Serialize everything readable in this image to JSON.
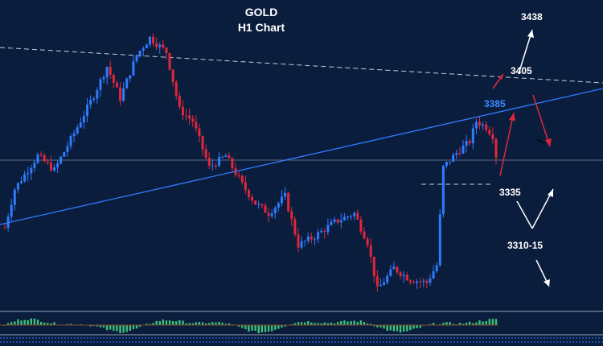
{
  "chart_data": {
    "type": "candlestick",
    "title": "GOLD",
    "subtitle": "H1 Chart",
    "colors": {
      "background": "#0b1d3d",
      "bull": "#2f7bff",
      "bear": "#e0283a",
      "trendline": "#2f7bff",
      "dashed": "#c8ced8",
      "arrow_white": "#ffffff",
      "arrow_red": "#e0283a",
      "osc_pos": "#3cc37a"
    },
    "price_range": [
      3255,
      3455
    ],
    "candle_count": 150,
    "close_path": [
      {
        "i": 0,
        "p": 3308
      },
      {
        "i": 3,
        "p": 3335
      },
      {
        "i": 10,
        "p": 3358
      },
      {
        "i": 15,
        "p": 3348
      },
      {
        "i": 22,
        "p": 3378
      },
      {
        "i": 27,
        "p": 3400
      },
      {
        "i": 31,
        "p": 3420
      },
      {
        "i": 35,
        "p": 3398
      },
      {
        "i": 40,
        "p": 3428
      },
      {
        "i": 44,
        "p": 3440
      },
      {
        "i": 49,
        "p": 3430
      },
      {
        "i": 53,
        "p": 3390
      },
      {
        "i": 57,
        "p": 3382
      },
      {
        "i": 62,
        "p": 3350
      },
      {
        "i": 67,
        "p": 3358
      },
      {
        "i": 72,
        "p": 3338
      },
      {
        "i": 76,
        "p": 3325
      },
      {
        "i": 80,
        "p": 3318
      },
      {
        "i": 85,
        "p": 3330
      },
      {
        "i": 89,
        "p": 3296
      },
      {
        "i": 94,
        "p": 3302
      },
      {
        "i": 100,
        "p": 3312
      },
      {
        "i": 106,
        "p": 3318
      },
      {
        "i": 110,
        "p": 3298
      },
      {
        "i": 113,
        "p": 3265
      },
      {
        "i": 118,
        "p": 3280
      },
      {
        "i": 123,
        "p": 3272
      },
      {
        "i": 128,
        "p": 3270
      },
      {
        "i": 131,
        "p": 3282
      },
      {
        "i": 133,
        "p": 3350
      },
      {
        "i": 137,
        "p": 3360
      },
      {
        "i": 141,
        "p": 3368
      },
      {
        "i": 143,
        "p": 3382
      },
      {
        "i": 146,
        "p": 3378
      },
      {
        "i": 148,
        "p": 3372
      },
      {
        "i": 149,
        "p": 3358
      }
    ],
    "levels": [
      {
        "label": "3438",
        "price": 3438,
        "style": "white"
      },
      {
        "label": "3405",
        "price": 3405,
        "style": "white"
      },
      {
        "label": "3385",
        "price": 3385,
        "style": "blue"
      },
      {
        "label": "3335",
        "price": 3335,
        "style": "white"
      },
      {
        "label": "3310-15",
        "price": 3312,
        "style": "white"
      }
    ],
    "grid": false,
    "legend": "none"
  }
}
